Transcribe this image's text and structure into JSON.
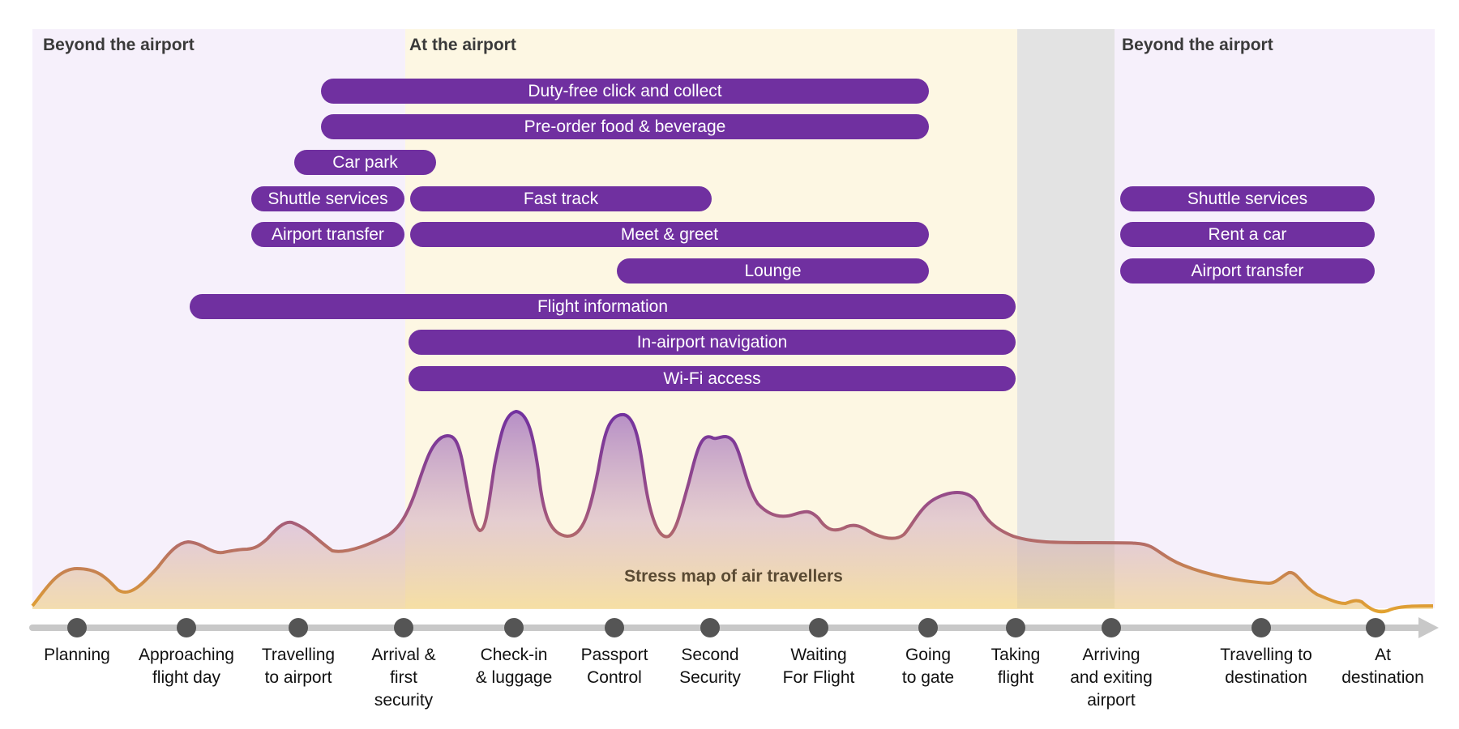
{
  "zones": {
    "beyond_left": "Beyond the airport",
    "at_airport": "At the airport",
    "beyond_right": "Beyond the airport"
  },
  "services": {
    "duty_free": "Duty-free click and collect",
    "pre_order": "Pre-order food & beverage",
    "car_park": "Car park",
    "shuttle_left": "Shuttle services",
    "fast_track": "Fast track",
    "airport_transfer_left": "Airport transfer",
    "meet_greet": "Meet & greet",
    "lounge": "Lounge",
    "flight_info": "Flight information",
    "in_airport_nav": "In-airport navigation",
    "wifi": "Wi-Fi access",
    "shuttle_right": "Shuttle services",
    "rent_car": "Rent a car",
    "airport_transfer_right": "Airport transfer"
  },
  "stress_map": {
    "title": "Stress map of air travellers"
  },
  "timeline": {
    "stages": [
      "Planning",
      "Approaching flight day",
      "Travelling to airport",
      "Arrival & first security",
      "Check-in & luggage",
      "Passport Control",
      "Second Security",
      "Waiting For Flight",
      "Going to gate",
      "Taking flight",
      "Arriving and exiting airport",
      "Travelling to destination",
      "At destination"
    ],
    "stage_lines": [
      [
        "Planning"
      ],
      [
        "Approaching",
        "flight day"
      ],
      [
        "Travelling",
        "to airport"
      ],
      [
        "Arrival &",
        "first",
        "security"
      ],
      [
        "Check-in",
        "& luggage"
      ],
      [
        "Passport",
        "Control"
      ],
      [
        "Second",
        "Security"
      ],
      [
        "Waiting",
        "For Flight"
      ],
      [
        "Going",
        "to gate"
      ],
      [
        "Taking",
        "flight"
      ],
      [
        "Arriving",
        "and exiting",
        "airport"
      ],
      [
        "Travelling to",
        "destination"
      ],
      [
        "At",
        "destination"
      ]
    ]
  },
  "colors": {
    "pill": "#7030a0",
    "beyond_bg": "#f6f0fb",
    "airport_bg": "#fdf7e3",
    "flight_bg": "#e3e3e3",
    "curve_top": "#7030a0",
    "curve_bottom": "#e7a82a",
    "dot": "#555555",
    "axis": "#c8c8c8"
  }
}
